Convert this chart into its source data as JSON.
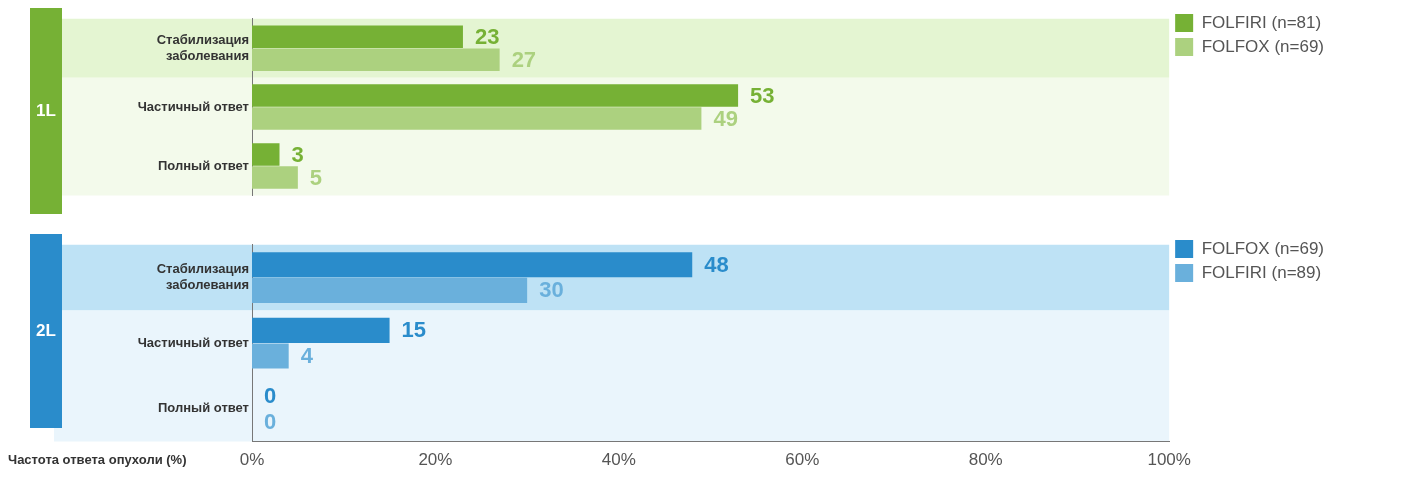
{
  "chart_data": [
    {
      "type": "bar",
      "orientation": "horizontal",
      "annotations": [
        "1L"
      ],
      "categories": [
        "Стабилизация заболевания",
        "Частичный ответ",
        "Полный ответ"
      ],
      "series": [
        {
          "name": "FOLFIRI (n=81)",
          "color": "#76b135",
          "values": [
            23,
            53,
            3
          ]
        },
        {
          "name": "FOLFOX (n=69)",
          "color": "#acd17f",
          "values": [
            27,
            49,
            5
          ]
        }
      ],
      "bands": [
        {
          "axis": "y",
          "from": "Стабилизация заболевания",
          "to": "Стабилизация заболевания",
          "color": "#e4f5d2"
        },
        {
          "axis": "y",
          "from": "Частичный ответ",
          "to": "Полный ответ",
          "color": "#f3faeb"
        }
      ],
      "xlim": [
        0,
        100
      ],
      "tick_labels": "y",
      "data_labels": true,
      "grid": false,
      "legend": "top right"
    },
    {
      "type": "bar",
      "orientation": "horizontal",
      "annotations": [
        "2L"
      ],
      "xlabel": "Частота ответа опухоли (%)",
      "categories": [
        "Стабилизация заболевания",
        "Частичный ответ",
        "Полный ответ"
      ],
      "series": [
        {
          "name": "FOLFOX (n=69)",
          "color": "#2a8ccb",
          "values": [
            48,
            15,
            0
          ]
        },
        {
          "name": "FOLFIRI (n=89)",
          "color": "#6ab0dc",
          "values": [
            30,
            4,
            0
          ]
        }
      ],
      "bands": [
        {
          "axis": "y",
          "from": "Стабилизация заболевания",
          "to": "Стабилизация заболевания",
          "color": "#bee2f5"
        },
        {
          "axis": "y",
          "from": "Частичный ответ",
          "to": "Полный ответ",
          "color": "#eaf5fc"
        }
      ],
      "xlim": [
        0,
        100
      ],
      "xticks": [
        {
          "value": 0,
          "label": "0%"
        },
        {
          "value": 20,
          "label": "20%"
        },
        {
          "value": 40,
          "label": "40%"
        },
        {
          "value": 60,
          "label": "60%"
        },
        {
          "value": 80,
          "label": "80%"
        },
        {
          "value": 100,
          "label": "100%"
        }
      ],
      "data_labels": true,
      "grid": false,
      "legend": "top right"
    }
  ]
}
